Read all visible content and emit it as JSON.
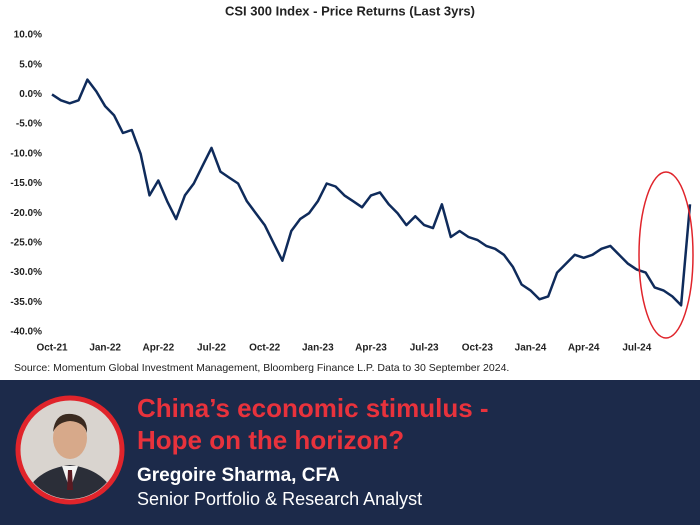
{
  "chart_data": {
    "type": "line",
    "title": "CSI 300 Index - Price Returns (Last 3yrs)",
    "source": "Source: Momentum Global Investment Management, Bloomberg Finance L.P. Data to 30 September 2024.",
    "categories": [
      "Oct-21",
      null,
      null,
      null,
      null,
      null,
      "Jan-22",
      null,
      null,
      null,
      null,
      null,
      "Apr-22",
      null,
      null,
      null,
      null,
      null,
      "Jul-22",
      null,
      null,
      null,
      null,
      null,
      "Oct-22",
      null,
      null,
      null,
      null,
      null,
      "Jan-23",
      null,
      null,
      null,
      null,
      null,
      "Apr-23",
      null,
      null,
      null,
      null,
      null,
      "Jul-23",
      null,
      null,
      null,
      null,
      null,
      "Oct-23",
      null,
      null,
      null,
      null,
      null,
      "Jan-24",
      null,
      null,
      null,
      null,
      null,
      "Apr-24",
      null,
      null,
      null,
      null,
      null,
      "Jul-24",
      null,
      null,
      null,
      null,
      null,
      null
    ],
    "series": [
      {
        "name": "CSI 300 Index",
        "color": "#0f2b5b",
        "values": [
          0,
          -1,
          -1.5,
          -1,
          2.5,
          0.5,
          -2,
          -3.5,
          -6.5,
          -6,
          -10,
          -17,
          -14.5,
          -18,
          -21,
          -17,
          -15,
          -12,
          -9,
          -13,
          -14,
          -15,
          -18,
          -20,
          -22,
          -25,
          -28,
          -23,
          -21,
          -20,
          -18,
          -15,
          -15.5,
          -17,
          -18,
          -19,
          -17,
          -16.5,
          -18.5,
          -20,
          -22,
          -20.5,
          -22,
          -22.5,
          -18.5,
          -24,
          -23,
          -24,
          -24.5,
          -25.5,
          -26,
          -27,
          -29,
          -32,
          -33,
          -34.5,
          -34,
          -30,
          -28.5,
          -27,
          -27.5,
          -27,
          -26,
          -25.5,
          -27,
          -28.5,
          -29.5,
          -30,
          -32.5,
          -33,
          -34,
          -35.5,
          -18.5
        ]
      }
    ],
    "ylim": [
      -40,
      10
    ],
    "yticks": [
      {
        "value": -40,
        "label": "-40.0%"
      },
      {
        "value": -35,
        "label": "-35.0%"
      },
      {
        "value": -30,
        "label": "-30.0%"
      },
      {
        "value": -25,
        "label": "-25.0%"
      },
      {
        "value": -20,
        "label": "-20.0%"
      },
      {
        "value": -15,
        "label": "-15.0%"
      },
      {
        "value": -10,
        "label": "-10.0%"
      },
      {
        "value": -5,
        "label": "-5.0%"
      },
      {
        "value": 0,
        "label": "0.0%"
      },
      {
        "value": 5,
        "label": "5.0%"
      },
      {
        "value": 10,
        "label": "10.0%"
      }
    ],
    "grid": false
  },
  "banner": {
    "headline": [
      "China’s economic stimulus -",
      "Hope on the horizon?"
    ],
    "name": "Gregoire Sharma, CFA",
    "role": "Senior Portfolio & Research Analyst"
  }
}
